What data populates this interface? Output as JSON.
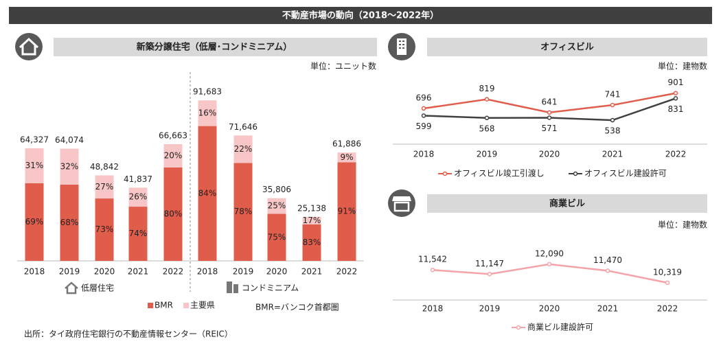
{
  "title": "不動産市場の動向（2018～2022年）",
  "source": "出所：タイ政府住宅銀行の不動産情報センター（REIC）",
  "chart_data": [
    {
      "type": "stacked_bar",
      "title": "新築分譲住宅（低層･コンドミニアム）",
      "unit": "単位：ユニット数",
      "note": "BMR=バンコク首都圏",
      "ylim": [
        0,
        100000
      ],
      "series": [
        {
          "name": "BMR",
          "color": "#e05c4b"
        },
        {
          "name": "主要県",
          "color": "#f8c6c6"
        }
      ],
      "groups": [
        {
          "name": "低層住宅",
          "categories": [
            "2018",
            "2019",
            "2020",
            "2021",
            "2022"
          ],
          "totals": [
            64327,
            64074,
            48842,
            41837,
            66663
          ],
          "total_labels": [
            "64,327",
            "64,074",
            "48,842",
            "41,837",
            "66,663"
          ],
          "values": [
            [
              69,
              68,
              73,
              74,
              80
            ],
            [
              31,
              32,
              27,
              26,
              20
            ]
          ],
          "value_labels": [
            [
              "69%",
              "68%",
              "73%",
              "74%",
              "80%"
            ],
            [
              "31%",
              "32%",
              "27%",
              "26%",
              "20%"
            ]
          ]
        },
        {
          "name": "コンドミニアム",
          "categories": [
            "2018",
            "2019",
            "2020",
            "2021",
            "2022"
          ],
          "totals": [
            91683,
            71646,
            35806,
            25138,
            61886
          ],
          "total_labels": [
            "91,683",
            "71,646",
            "35,806",
            "25,138",
            "61,886"
          ],
          "values": [
            [
              84,
              78,
              75,
              83,
              91
            ],
            [
              16,
              22,
              25,
              17,
              9
            ]
          ],
          "value_labels": [
            [
              "84%",
              "78%",
              "75%",
              "83%",
              "91%"
            ],
            [
              "16%",
              "22%",
              "25%",
              "17%",
              "9%"
            ]
          ]
        }
      ]
    },
    {
      "type": "line",
      "title": "オフィスビル",
      "unit": "単位：建物数",
      "categories": [
        "2018",
        "2019",
        "2020",
        "2021",
        "2022"
      ],
      "ylim": [
        400,
        1000
      ],
      "series": [
        {
          "name": "オフィスビル竣工引渡し",
          "color": "#e05c4b",
          "values": [
            696,
            819,
            641,
            741,
            901
          ]
        },
        {
          "name": "オフィスビル建設許可",
          "color": "#404040",
          "values": [
            599,
            568,
            571,
            538,
            831
          ]
        }
      ]
    },
    {
      "type": "line",
      "title": "商業ビル",
      "unit": "単位：建物数",
      "categories": [
        "2018",
        "2019",
        "2020",
        "2021",
        "2022"
      ],
      "ylim": [
        9000,
        13000
      ],
      "series": [
        {
          "name": "商業ビル建設許可",
          "color": "#f4a3a8",
          "values": [
            11542,
            11147,
            12090,
            11470,
            10319
          ],
          "value_labels": [
            "11,542",
            "11,147",
            "12,090",
            "11,470",
            "10,319"
          ]
        }
      ]
    }
  ]
}
